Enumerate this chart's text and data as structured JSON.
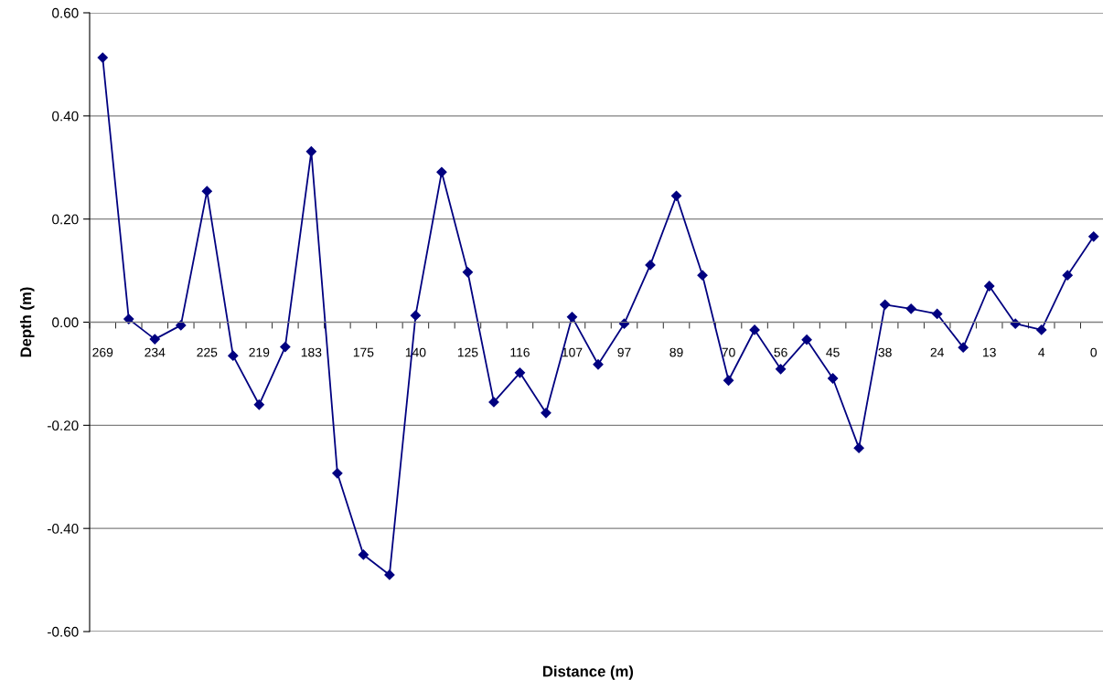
{
  "chart_data": {
    "type": "line",
    "xlabel": "Distance (m)",
    "ylabel": "Depth (m)",
    "categories": [
      "269",
      null,
      "234",
      null,
      "225",
      null,
      "219",
      null,
      "183",
      null,
      "175",
      null,
      "140",
      null,
      "125",
      null,
      "116",
      null,
      "107",
      null,
      "97",
      null,
      "89",
      null,
      "70",
      null,
      "56",
      null,
      "45",
      null,
      "38",
      null,
      "24",
      null,
      "13",
      null,
      "4",
      null,
      "0"
    ],
    "series": [
      {
        "color": "#000080",
        "values": [
          0.513,
          0.006,
          -0.033,
          -0.006,
          0.254,
          -0.065,
          -0.16,
          -0.048,
          0.331,
          -0.293,
          -0.451,
          -0.49,
          0.013,
          0.291,
          0.097,
          -0.155,
          -0.098,
          -0.176,
          0.01,
          -0.082,
          -0.003,
          0.111,
          0.245,
          0.091,
          -0.113,
          -0.015,
          -0.091,
          -0.034,
          -0.109,
          -0.244,
          0.034,
          0.026,
          0.016,
          -0.049,
          0.07,
          -0.003,
          -0.015,
          0.091,
          0.166
        ]
      }
    ],
    "ylim": [
      -0.6,
      0.6
    ],
    "yticks": [
      {
        "value": -0.6,
        "label": "-0.60"
      },
      {
        "value": -0.4,
        "label": "-0.40"
      },
      {
        "value": -0.2,
        "label": "-0.20"
      },
      {
        "value": 0,
        "label": "0.00"
      },
      {
        "value": 0.2,
        "label": "0.20"
      },
      {
        "value": 0.4,
        "label": "0.40"
      },
      {
        "value": 0.6,
        "label": "0.60"
      }
    ],
    "grid": "y",
    "marker": "diamond",
    "line_style": "solid"
  }
}
